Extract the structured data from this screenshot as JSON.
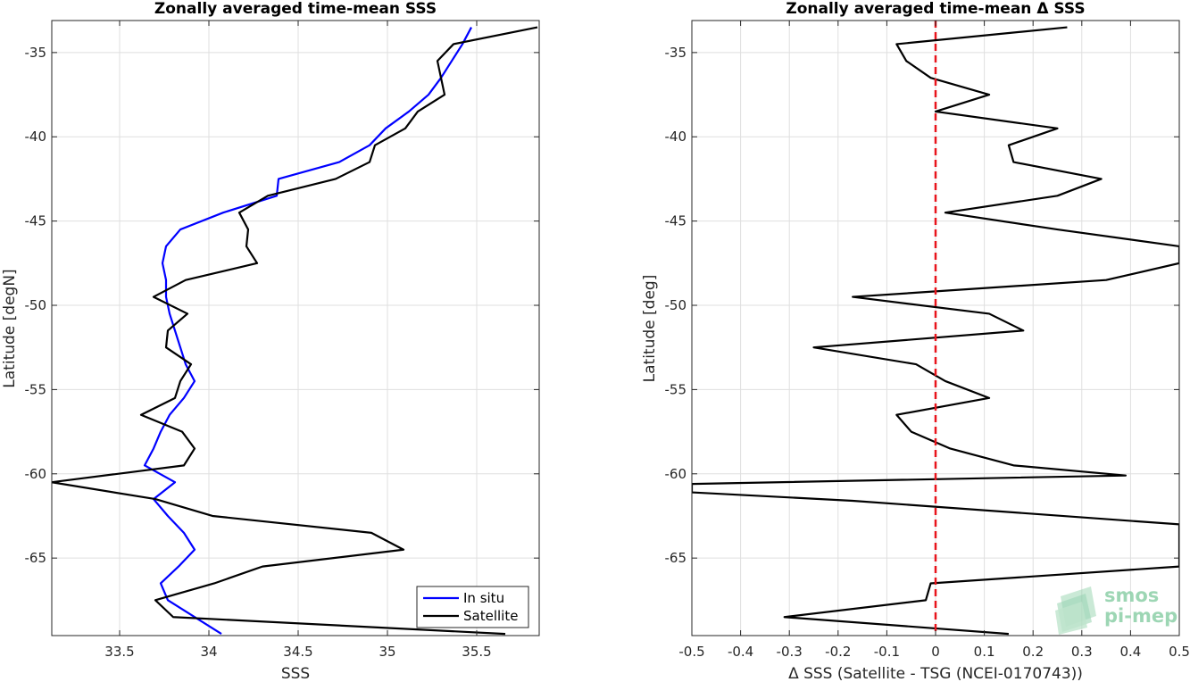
{
  "chart_data": [
    {
      "type": "line",
      "title": "Zonally averaged time-mean SSS",
      "xlabel": "SSS",
      "ylabel": "Latitude [degN]",
      "xlim": [
        33.12,
        35.85
      ],
      "ylim": [
        -69.6,
        -33.1
      ],
      "xticks": [
        33.5,
        34,
        34.5,
        35,
        35.5
      ],
      "yticks": [
        -65,
        -60,
        -55,
        -50,
        -45,
        -40,
        -35
      ],
      "grid": true,
      "legend_position": "bottom-right",
      "series": [
        {
          "name": "In situ",
          "color": "#0000ff",
          "points": [
            [
              35.47,
              -33.5
            ],
            [
              35.42,
              -34.5
            ],
            [
              35.36,
              -35.5
            ],
            [
              35.3,
              -36.5
            ],
            [
              35.23,
              -37.5
            ],
            [
              35.12,
              -38.5
            ],
            [
              34.99,
              -39.5
            ],
            [
              34.9,
              -40.5
            ],
            [
              34.73,
              -41.5
            ],
            [
              34.39,
              -42.5
            ],
            [
              34.38,
              -43.5
            ],
            [
              34.08,
              -44.5
            ],
            [
              33.84,
              -45.5
            ],
            [
              33.76,
              -46.5
            ],
            [
              33.74,
              -47.5
            ],
            [
              33.76,
              -48.5
            ],
            [
              33.76,
              -49.5
            ],
            [
              33.78,
              -50.5
            ],
            [
              33.81,
              -51.5
            ],
            [
              33.84,
              -52.5
            ],
            [
              33.87,
              -53.5
            ],
            [
              33.92,
              -54.5
            ],
            [
              33.86,
              -55.5
            ],
            [
              33.78,
              -56.5
            ],
            [
              33.73,
              -57.5
            ],
            [
              33.69,
              -58.5
            ],
            [
              33.64,
              -59.5
            ],
            [
              33.81,
              -60.5
            ],
            [
              33.69,
              -61.5
            ],
            [
              33.77,
              -62.5
            ],
            [
              33.86,
              -63.5
            ],
            [
              33.92,
              -64.5
            ],
            [
              33.83,
              -65.5
            ],
            [
              33.73,
              -66.5
            ],
            [
              33.77,
              -67.5
            ],
            [
              33.92,
              -68.5
            ],
            [
              34.07,
              -69.5
            ]
          ]
        },
        {
          "name": "Satellite",
          "color": "#000000",
          "points": [
            [
              35.84,
              -33.5
            ],
            [
              35.37,
              -34.5
            ],
            [
              35.28,
              -35.5
            ],
            [
              35.3,
              -36.5
            ],
            [
              35.32,
              -37.5
            ],
            [
              35.17,
              -38.5
            ],
            [
              35.1,
              -39.5
            ],
            [
              34.93,
              -40.5
            ],
            [
              34.9,
              -41.5
            ],
            [
              34.71,
              -42.5
            ],
            [
              34.33,
              -43.5
            ],
            [
              34.17,
              -44.5
            ],
            [
              34.22,
              -45.5
            ],
            [
              34.21,
              -46.5
            ],
            [
              34.27,
              -47.5
            ],
            [
              33.87,
              -48.5
            ],
            [
              33.69,
              -49.5
            ],
            [
              33.88,
              -50.5
            ],
            [
              33.77,
              -51.5
            ],
            [
              33.76,
              -52.5
            ],
            [
              33.9,
              -53.5
            ],
            [
              33.84,
              -54.5
            ],
            [
              33.81,
              -55.5
            ],
            [
              33.62,
              -56.5
            ],
            [
              33.85,
              -57.5
            ],
            [
              33.92,
              -58.5
            ],
            [
              33.86,
              -59.5
            ],
            [
              33.12,
              -60.5
            ],
            [
              33.7,
              -61.5
            ],
            [
              34.02,
              -62.5
            ],
            [
              34.91,
              -63.5
            ],
            [
              35.09,
              -64.5
            ],
            [
              34.3,
              -65.5
            ],
            [
              34.03,
              -66.5
            ],
            [
              33.7,
              -67.5
            ],
            [
              33.8,
              -68.5
            ],
            [
              35.66,
              -69.5
            ]
          ]
        }
      ]
    },
    {
      "type": "line",
      "title": "Zonally averaged time-mean Δ SSS",
      "xlabel": "Δ SSS (Satellite - TSG (NCEI-0170743))",
      "ylabel": "Latitude [deg]",
      "xlim": [
        -0.5,
        0.5
      ],
      "ylim": [
        -69.6,
        -33.1
      ],
      "xticks": [
        -0.5,
        -0.4,
        -0.3,
        -0.2,
        -0.1,
        0,
        0.1,
        0.2,
        0.3,
        0.4,
        0.5
      ],
      "yticks": [
        -65,
        -60,
        -55,
        -50,
        -45,
        -40,
        -35
      ],
      "grid": true,
      "reference_line": {
        "x": 0,
        "color": "#e8141c",
        "style": "dashed"
      },
      "series": [
        {
          "color": "#000000",
          "points": [
            [
              0.27,
              -33.5
            ],
            [
              -0.08,
              -34.5
            ],
            [
              -0.06,
              -35.5
            ],
            [
              -0.01,
              -36.5
            ],
            [
              0.11,
              -37.5
            ],
            [
              0.0,
              -38.5
            ],
            [
              0.25,
              -39.5
            ],
            [
              0.15,
              -40.5
            ],
            [
              0.16,
              -41.5
            ],
            [
              0.34,
              -42.5
            ],
            [
              0.25,
              -43.5
            ],
            [
              0.02,
              -44.5
            ],
            [
              0.25,
              -45.5
            ],
            [
              0.5,
              -46.5
            ],
            [
              0.5,
              -47.5
            ],
            [
              0.35,
              -48.5
            ],
            [
              -0.17,
              -49.5
            ],
            [
              0.11,
              -50.5
            ],
            [
              0.18,
              -51.5
            ],
            [
              -0.25,
              -52.5
            ],
            [
              -0.04,
              -53.5
            ],
            [
              0.02,
              -54.5
            ],
            [
              0.11,
              -55.5
            ],
            [
              -0.08,
              -56.5
            ],
            [
              -0.05,
              -57.5
            ],
            [
              0.03,
              -58.5
            ],
            [
              0.16,
              -59.5
            ],
            [
              0.39,
              -60.1
            ],
            [
              -0.5,
              -60.6
            ],
            [
              -0.5,
              -61.1
            ],
            [
              -0.17,
              -61.6
            ],
            [
              0.5,
              -63.0
            ],
            [
              0.5,
              -65.5
            ],
            [
              -0.01,
              -66.5
            ],
            [
              -0.02,
              -67.5
            ],
            [
              -0.31,
              -68.5
            ],
            [
              0.15,
              -69.5
            ]
          ]
        }
      ]
    }
  ],
  "logo": {
    "line1": "smos",
    "line2": "pi-mep"
  }
}
